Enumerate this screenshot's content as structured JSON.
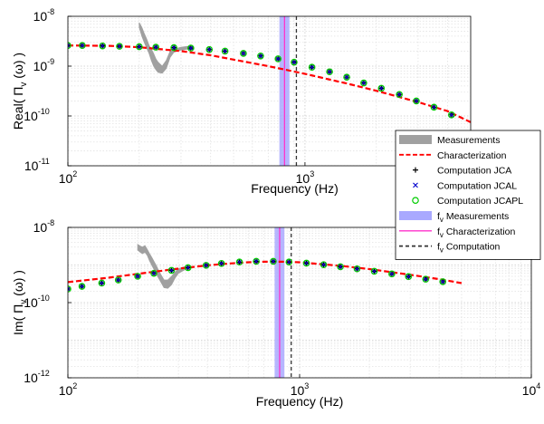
{
  "chart_data": [
    {
      "type": "line",
      "x_scale": "log",
      "y_scale": "log",
      "xlim": [
        100,
        5000
      ],
      "ylim": [
        1e-11,
        1e-08
      ],
      "xlabel": "Frequency (Hz)",
      "ylabel": "Real( Π_v (ω) )",
      "ylabel_parts": {
        "pre": "Real( ",
        "sym": "Π",
        "sub": "v",
        "post": " (ω) )"
      },
      "x_ticks": [
        {
          "v": 100,
          "b": "10",
          "e": "2"
        },
        {
          "v": 1000,
          "b": "10",
          "e": "3"
        }
      ],
      "y_ticks": [
        {
          "v": 1e-11,
          "b": "10",
          "e": "-11"
        },
        {
          "v": 1e-10,
          "b": "10",
          "e": "-10"
        },
        {
          "v": 1e-09,
          "b": "10",
          "e": "-9"
        },
        {
          "v": 1e-08,
          "b": "10",
          "e": "-8"
        }
      ],
      "grid": true,
      "bands": [
        {
          "x": [
            780,
            860
          ],
          "color": "#a9a9ff",
          "label_ref": "fv Measurements"
        }
      ],
      "vlines": [
        {
          "x": 820,
          "color": "#ff33cc",
          "style": "solid",
          "label_ref": "fv Characterization"
        },
        {
          "x": 920,
          "color": "#333333",
          "style": "dashed",
          "label_ref": "fv Computation"
        }
      ],
      "series": [
        {
          "name": "Measurements",
          "kind": "band",
          "color": "#a0a0a0",
          "x": [
            200,
            205,
            210,
            215,
            220,
            225,
            230,
            235,
            240,
            250,
            260,
            270,
            280,
            290,
            300,
            320,
            340
          ],
          "upper": [
            7.5e-09,
            6e-09,
            4.5e-09,
            3.5e-09,
            2.6e-09,
            2.2e-09,
            1.8e-09,
            1.4e-09,
            1.2e-09,
            1e-09,
            1.3e-09,
            2e-09,
            2.3e-09,
            2.3e-09,
            2.4e-09,
            2.5e-09,
            2.4e-09
          ],
          "lower": [
            6e-09,
            4e-09,
            3e-09,
            2.3e-09,
            1.8e-09,
            1.3e-09,
            1e-09,
            8.5e-10,
            7.5e-10,
            7.2e-10,
            9e-10,
            1.5e-09,
            1.9e-09,
            2e-09,
            2.1e-09,
            2.2e-09,
            2.2e-09
          ]
        },
        {
          "name": "Characterization",
          "kind": "line",
          "color": "#ff0000",
          "style": "dashed",
          "x": [
            100,
            150,
            200,
            300,
            400,
            500,
            700,
            1000,
            1500,
            2000,
            3000,
            4000,
            5000
          ],
          "y": [
            2.6e-09,
            2.55e-09,
            2.4e-09,
            2e-09,
            1.65e-09,
            1.35e-09,
            1e-09,
            7e-10,
            4.5e-10,
            3.2e-10,
            1.9e-10,
            1.25e-10,
            7.5e-11
          ]
        },
        {
          "name": "Computation JCA",
          "kind": "marker",
          "marker": "plus",
          "color": "#000000",
          "x": [
            100,
            115,
            140,
            165,
            200,
            235,
            280,
            330,
            395,
            460,
            550,
            650,
            770,
            900,
            1070,
            1270,
            1500,
            1770,
            2100,
            2500,
            2950,
            3500,
            4150
          ],
          "y": [
            2.6e-09,
            2.6e-09,
            2.55e-09,
            2.5e-09,
            2.45e-09,
            2.4e-09,
            2.35e-09,
            2.3e-09,
            2.15e-09,
            2e-09,
            1.8e-09,
            1.6e-09,
            1.4e-09,
            1.2e-09,
            9.5e-10,
            7.7e-10,
            6e-10,
            4.6e-10,
            3.6e-10,
            2.7e-10,
            2e-10,
            1.5e-10,
            1.05e-10
          ]
        },
        {
          "name": "Computation JCAL",
          "kind": "marker",
          "marker": "x",
          "color": "#0000cc",
          "x": [
            100,
            115,
            140,
            165,
            200,
            235,
            280,
            330,
            395,
            460,
            550,
            650,
            770,
            900,
            1070,
            1270,
            1500,
            1770,
            2100,
            2500,
            2950,
            3500,
            4150
          ],
          "y": [
            2.6e-09,
            2.6e-09,
            2.55e-09,
            2.5e-09,
            2.45e-09,
            2.4e-09,
            2.35e-09,
            2.3e-09,
            2.15e-09,
            2e-09,
            1.8e-09,
            1.6e-09,
            1.4e-09,
            1.2e-09,
            9.5e-10,
            7.7e-10,
            6e-10,
            4.6e-10,
            3.6e-10,
            2.7e-10,
            2e-10,
            1.5e-10,
            1.05e-10
          ]
        },
        {
          "name": "Computation JCAPL",
          "kind": "marker",
          "marker": "circle",
          "color": "#00cc00",
          "x": [
            100,
            115,
            140,
            165,
            200,
            235,
            280,
            330,
            395,
            460,
            550,
            650,
            770,
            900,
            1070,
            1270,
            1500,
            1770,
            2100,
            2500,
            2950,
            3500,
            4150
          ],
          "y": [
            2.6e-09,
            2.6e-09,
            2.55e-09,
            2.5e-09,
            2.45e-09,
            2.4e-09,
            2.35e-09,
            2.3e-09,
            2.15e-09,
            2e-09,
            1.8e-09,
            1.6e-09,
            1.4e-09,
            1.2e-09,
            9.5e-10,
            7.7e-10,
            6e-10,
            4.6e-10,
            3.6e-10,
            2.7e-10,
            2e-10,
            1.5e-10,
            1.05e-10
          ]
        }
      ]
    },
    {
      "type": "line",
      "x_scale": "log",
      "y_scale": "log",
      "xlim": [
        100,
        10000
      ],
      "ylim": [
        1e-12,
        1e-08
      ],
      "xlabel": "Frequency (Hz)",
      "ylabel": "Im( Π_v (ω) )",
      "ylabel_parts": {
        "pre": "Im( ",
        "sym": "Π",
        "sub": "v",
        "post": " (ω) )"
      },
      "x_ticks": [
        {
          "v": 100,
          "b": "10",
          "e": "2"
        },
        {
          "v": 1000,
          "b": "10",
          "e": "3"
        },
        {
          "v": 10000,
          "b": "10",
          "e": "4"
        }
      ],
      "y_ticks": [
        {
          "v": 1e-12,
          "b": "10",
          "e": "-12"
        },
        {
          "v": 1e-10,
          "b": "10",
          "e": "-10"
        },
        {
          "v": 1e-08,
          "b": "10",
          "e": "-8"
        }
      ],
      "grid": true,
      "bands": [
        {
          "x": [
            780,
            860
          ],
          "color": "#a9a9ff",
          "label_ref": "fv Measurements"
        }
      ],
      "vlines": [
        {
          "x": 820,
          "color": "#ff33cc",
          "style": "solid",
          "label_ref": "fv Characterization"
        },
        {
          "x": 920,
          "color": "#333333",
          "style": "dashed",
          "label_ref": "fv Computation"
        }
      ],
      "series": [
        {
          "name": "Measurements",
          "kind": "band",
          "color": "#a0a0a0",
          "x": [
            200,
            205,
            210,
            215,
            220,
            225,
            230,
            240,
            250,
            260,
            270,
            280,
            290,
            300,
            320
          ],
          "upper": [
            3.5e-09,
            3.2e-09,
            3e-09,
            3.3e-09,
            2.6e-09,
            2e-09,
            1.6e-09,
            1e-09,
            6e-10,
            4e-10,
            4e-10,
            5e-10,
            6.5e-10,
            8e-10,
            9e-10
          ],
          "lower": [
            2.5e-09,
            2.2e-09,
            2e-09,
            2.2e-09,
            1.8e-09,
            1.3e-09,
            1e-09,
            6e-10,
            3.8e-10,
            2.5e-10,
            2.4e-10,
            3e-10,
            4.5e-10,
            6e-10,
            7.5e-10
          ]
        },
        {
          "name": "Characterization",
          "kind": "line",
          "color": "#ff0000",
          "style": "dashed",
          "x": [
            100,
            150,
            200,
            300,
            400,
            500,
            600,
            700,
            850,
            1000,
            1500,
            2000,
            3000,
            4000,
            5000
          ],
          "y": [
            3.5e-10,
            4.6e-10,
            5.8e-10,
            8e-10,
            9.8e-10,
            1.1e-09,
            1.18e-09,
            1.22e-09,
            1.22e-09,
            1.18e-09,
            9.5e-10,
            7.8e-10,
            5.5e-10,
            4.2e-10,
            3.3e-10
          ]
        },
        {
          "name": "Computation JCA",
          "kind": "marker",
          "marker": "plus",
          "color": "#000000",
          "x": [
            100,
            115,
            140,
            165,
            200,
            235,
            280,
            330,
            395,
            460,
            550,
            650,
            770,
            900,
            1070,
            1270,
            1500,
            1770,
            2100,
            2500,
            2950,
            3500,
            4150
          ],
          "y": [
            2.3e-10,
            2.7e-10,
            3.3e-10,
            4e-10,
            5e-10,
            6e-10,
            7.2e-10,
            8.5e-10,
            9.8e-10,
            1.1e-09,
            1.2e-09,
            1.25e-09,
            1.25e-09,
            1.2e-09,
            1.12e-09,
            1.02e-09,
            9e-10,
            7.9e-10,
            6.8e-10,
            5.8e-10,
            4.9e-10,
            4.2e-10,
            3.6e-10
          ]
        },
        {
          "name": "Computation JCAL",
          "kind": "marker",
          "marker": "x",
          "color": "#0000cc",
          "x": [
            100,
            115,
            140,
            165,
            200,
            235,
            280,
            330,
            395,
            460,
            550,
            650,
            770,
            900,
            1070,
            1270,
            1500,
            1770,
            2100,
            2500,
            2950,
            3500,
            4150
          ],
          "y": [
            2.3e-10,
            2.7e-10,
            3.3e-10,
            4e-10,
            5e-10,
            6e-10,
            7.2e-10,
            8.5e-10,
            9.8e-10,
            1.1e-09,
            1.2e-09,
            1.25e-09,
            1.25e-09,
            1.2e-09,
            1.12e-09,
            1.02e-09,
            9e-10,
            7.9e-10,
            6.8e-10,
            5.8e-10,
            4.9e-10,
            4.2e-10,
            3.6e-10
          ]
        },
        {
          "name": "Computation JCAPL",
          "kind": "marker",
          "marker": "circle",
          "color": "#00cc00",
          "x": [
            100,
            115,
            140,
            165,
            200,
            235,
            280,
            330,
            395,
            460,
            550,
            650,
            770,
            900,
            1070,
            1270,
            1500,
            1770,
            2100,
            2500,
            2950,
            3500,
            4150
          ],
          "y": [
            2.3e-10,
            2.7e-10,
            3.3e-10,
            4e-10,
            5e-10,
            6e-10,
            7.2e-10,
            8.5e-10,
            9.8e-10,
            1.1e-09,
            1.2e-09,
            1.25e-09,
            1.25e-09,
            1.2e-09,
            1.12e-09,
            1.02e-09,
            9e-10,
            7.9e-10,
            6.8e-10,
            5.8e-10,
            4.9e-10,
            4.2e-10,
            3.6e-10
          ]
        }
      ]
    }
  ],
  "legend": {
    "placement": "right-middle",
    "entries": [
      {
        "label": "Measurements",
        "kind": "band",
        "color": "#a0a0a0"
      },
      {
        "label": "Characterization",
        "kind": "line",
        "color": "#ff0000",
        "style": "dashed"
      },
      {
        "label": "Computation JCA",
        "kind": "marker",
        "marker": "plus",
        "color": "#000000"
      },
      {
        "label": "Computation JCAL",
        "kind": "marker",
        "marker": "x",
        "color": "#0000cc"
      },
      {
        "label": "Computation JCAPL",
        "kind": "marker",
        "marker": "circle",
        "color": "#00cc00"
      },
      {
        "label": "f",
        "sub": "v",
        "rest": " Measurements",
        "kind": "band",
        "color": "#a9a9ff"
      },
      {
        "label": "f",
        "sub": "v",
        "rest": " Characterization",
        "kind": "line",
        "color": "#ff33cc",
        "style": "solid"
      },
      {
        "label": "f",
        "sub": "v",
        "rest": " Computation",
        "kind": "line",
        "color": "#333333",
        "style": "dashed"
      }
    ]
  }
}
